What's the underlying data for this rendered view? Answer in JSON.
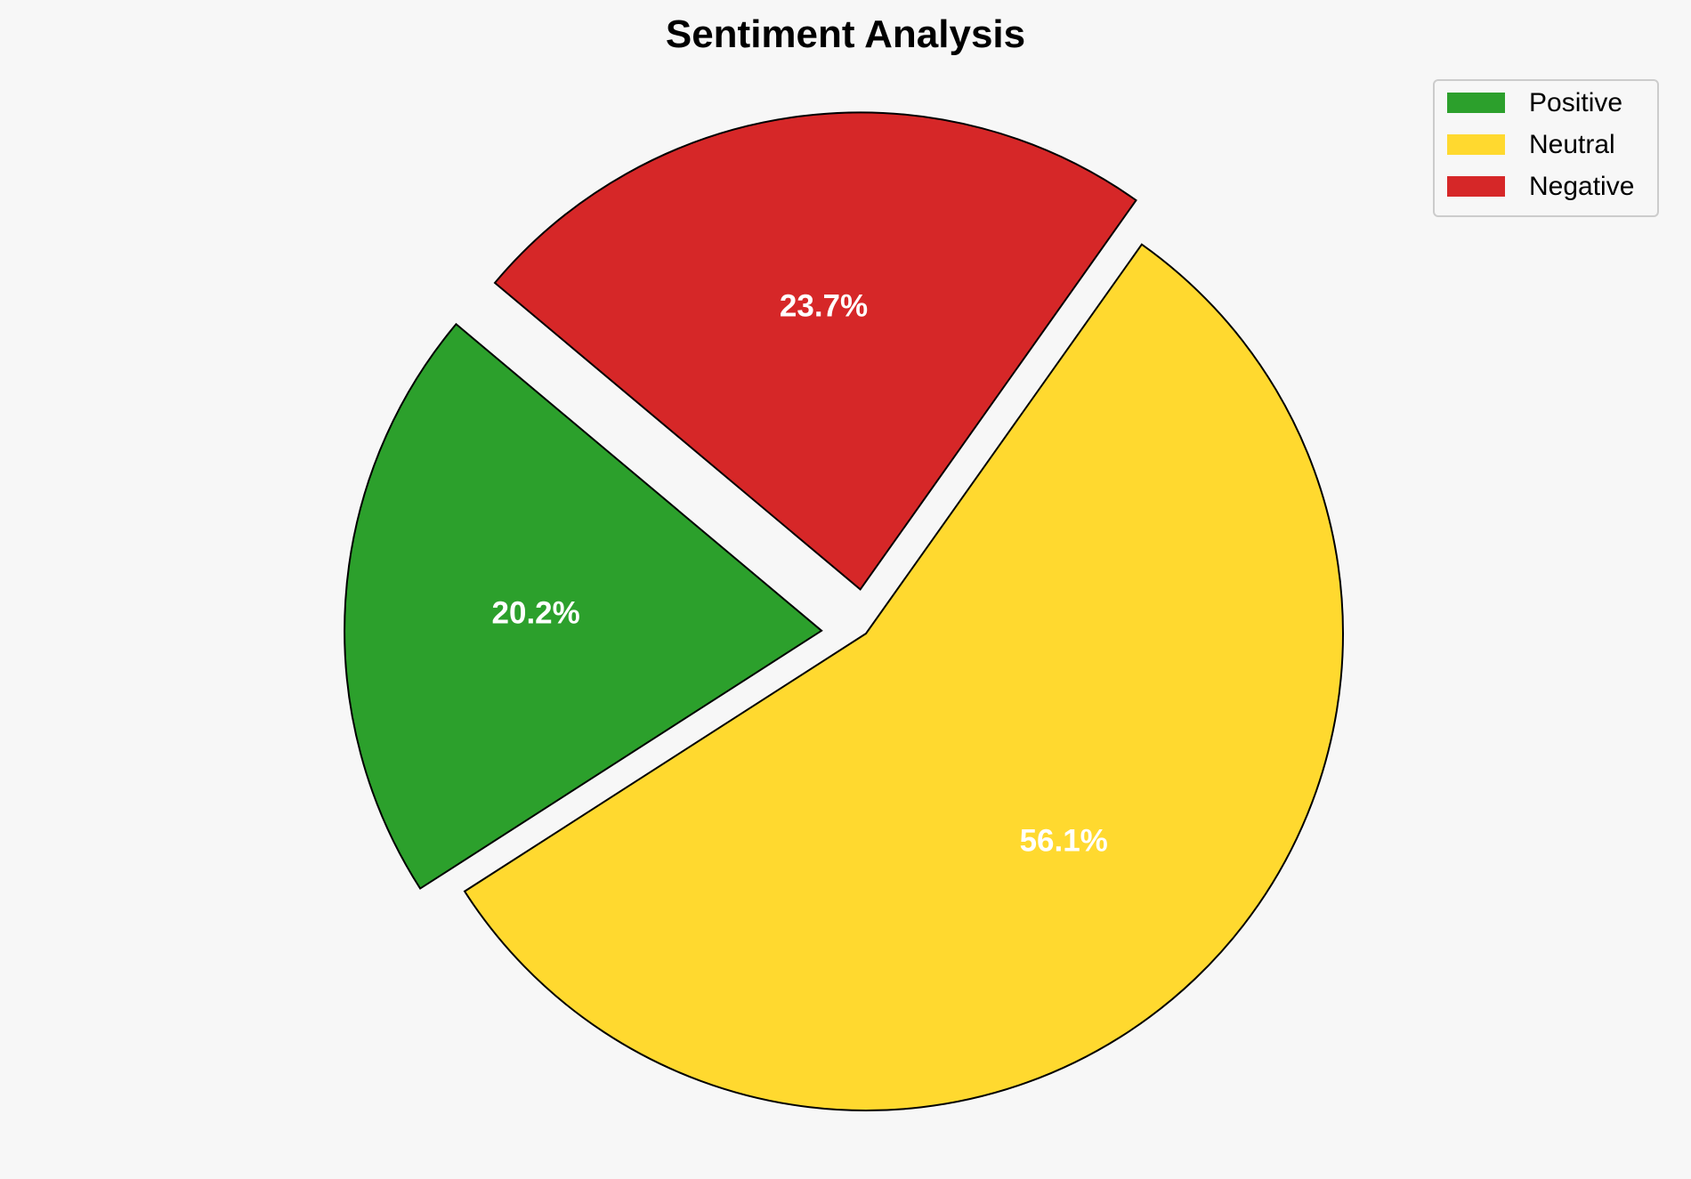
{
  "chart_data": {
    "type": "pie",
    "title": "Sentiment Analysis",
    "categories": [
      "Positive",
      "Neutral",
      "Negative"
    ],
    "values": [
      20.2,
      56.1,
      23.7
    ],
    "labels": [
      "20.2%",
      "56.1%",
      "23.7%"
    ],
    "colors": [
      "#2ca02c",
      "#ffd92f",
      "#d62728"
    ],
    "exploded": [
      true,
      false,
      true
    ],
    "start_angle_deg": 140,
    "direction": "counterclockwise",
    "legend": {
      "position": "top-right",
      "entries": [
        "Positive",
        "Neutral",
        "Negative"
      ]
    },
    "edge_color": "#000000",
    "label_color": "#ffffff",
    "background": "#f7f7f7"
  }
}
